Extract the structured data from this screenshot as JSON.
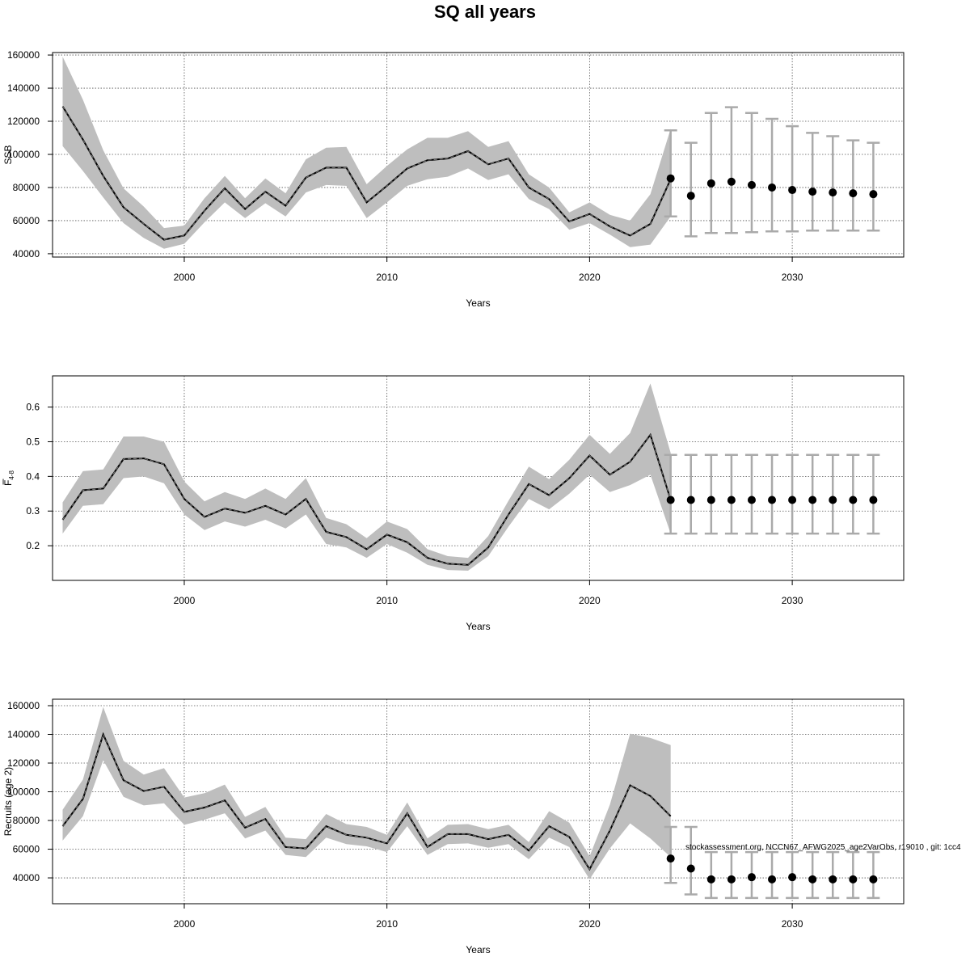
{
  "title": "SQ all years",
  "footnote": "stockassessment.org, NCCN67_AFWG2025_age2VarObs, r19010 , git: 1cc4",
  "chart_data": [
    {
      "type": "line",
      "name": "ssb",
      "ylabel": "SSB",
      "xlabel": "Years",
      "xlim": [
        1993.5,
        2035.5
      ],
      "ylim": [
        38000,
        161500
      ],
      "xticks": [
        2000,
        2010,
        2020,
        2030
      ],
      "yticks": [
        40000,
        60000,
        80000,
        100000,
        120000,
        140000,
        160000
      ],
      "grid": true,
      "x": [
        1994,
        1995,
        1996,
        1997,
        1998,
        1999,
        2000,
        2001,
        2002,
        2003,
        2004,
        2005,
        2006,
        2007,
        2008,
        2009,
        2010,
        2011,
        2012,
        2013,
        2014,
        2015,
        2016,
        2017,
        2018,
        2019,
        2020,
        2021,
        2022,
        2023,
        2024
      ],
      "estimate": [
        129000,
        109000,
        87000,
        68000,
        58000,
        48500,
        51000,
        66000,
        79500,
        67000,
        77500,
        69000,
        86000,
        92000,
        92000,
        71000,
        81000,
        91500,
        96500,
        97500,
        102000,
        94000,
        97500,
        80000,
        73000,
        59500,
        64000,
        56500,
        51000,
        58000,
        85000
      ],
      "lower": [
        105000,
        90000,
        74000,
        58500,
        49500,
        43000,
        46000,
        59000,
        71000,
        61500,
        70500,
        62500,
        77000,
        81500,
        81000,
        61500,
        71000,
        81000,
        85000,
        86500,
        91500,
        84500,
        88000,
        73000,
        67000,
        54500,
        58500,
        51500,
        44000,
        45500,
        62500
      ],
      "upper": [
        159000,
        133000,
        102500,
        79500,
        68500,
        55500,
        57000,
        73500,
        87000,
        73500,
        85500,
        76500,
        97000,
        104000,
        104500,
        82000,
        93000,
        103000,
        110000,
        110000,
        114000,
        104500,
        108000,
        88000,
        80000,
        65000,
        71000,
        63500,
        60000,
        76000,
        115500
      ],
      "forecast": {
        "x": [
          2024,
          2025,
          2026,
          2027,
          2028,
          2029,
          2030,
          2031,
          2032,
          2033,
          2034
        ],
        "median": [
          85500,
          75000,
          82500,
          83500,
          81500,
          80000,
          78500,
          77500,
          77000,
          76500,
          76000
        ],
        "lower": [
          62500,
          50500,
          52500,
          52500,
          53000,
          53500,
          53500,
          54000,
          54000,
          54000,
          54000
        ],
        "upper": [
          114500,
          107000,
          125000,
          128500,
          125000,
          121500,
          117000,
          113000,
          111000,
          108500,
          107000
        ]
      }
    },
    {
      "type": "line",
      "name": "fbar",
      "ylabel": "F",
      "ylabel_sub": "4-8",
      "xlabel": "Years",
      "xlim": [
        1993.5,
        2035.5
      ],
      "ylim": [
        0.1,
        0.69
      ],
      "xticks": [
        2000,
        2010,
        2020,
        2030
      ],
      "yticks": [
        0.2,
        0.3,
        0.4,
        0.5,
        0.6
      ],
      "grid": true,
      "x": [
        1994,
        1995,
        1996,
        1997,
        1998,
        1999,
        2000,
        2001,
        2002,
        2003,
        2004,
        2005,
        2006,
        2007,
        2008,
        2009,
        2010,
        2011,
        2012,
        2013,
        2014,
        2015,
        2016,
        2017,
        2018,
        2019,
        2020,
        2021,
        2022,
        2023,
        2024
      ],
      "estimate": [
        0.275,
        0.36,
        0.365,
        0.45,
        0.452,
        0.435,
        0.335,
        0.283,
        0.307,
        0.295,
        0.315,
        0.29,
        0.335,
        0.24,
        0.225,
        0.19,
        0.232,
        0.21,
        0.165,
        0.148,
        0.145,
        0.195,
        0.29,
        0.378,
        0.346,
        0.395,
        0.46,
        0.405,
        0.442,
        0.52,
        0.332
      ],
      "lower": [
        0.235,
        0.315,
        0.32,
        0.395,
        0.4,
        0.38,
        0.29,
        0.245,
        0.27,
        0.255,
        0.275,
        0.25,
        0.29,
        0.205,
        0.195,
        0.165,
        0.205,
        0.18,
        0.145,
        0.13,
        0.128,
        0.17,
        0.255,
        0.335,
        0.305,
        0.35,
        0.405,
        0.355,
        0.375,
        0.405,
        0.235
      ],
      "upper": [
        0.325,
        0.415,
        0.42,
        0.515,
        0.515,
        0.5,
        0.385,
        0.328,
        0.355,
        0.335,
        0.365,
        0.335,
        0.395,
        0.28,
        0.262,
        0.222,
        0.27,
        0.248,
        0.19,
        0.17,
        0.165,
        0.228,
        0.33,
        0.428,
        0.392,
        0.448,
        0.52,
        0.465,
        0.525,
        0.668,
        0.468
      ],
      "forecast": {
        "x": [
          2024,
          2025,
          2026,
          2027,
          2028,
          2029,
          2030,
          2031,
          2032,
          2033,
          2034
        ],
        "median": [
          0.332,
          0.332,
          0.332,
          0.332,
          0.332,
          0.332,
          0.332,
          0.332,
          0.332,
          0.332,
          0.332
        ],
        "lower": [
          0.235,
          0.235,
          0.235,
          0.235,
          0.235,
          0.235,
          0.235,
          0.235,
          0.235,
          0.235,
          0.235
        ],
        "upper": [
          0.462,
          0.462,
          0.462,
          0.462,
          0.462,
          0.462,
          0.462,
          0.462,
          0.462,
          0.462,
          0.462
        ]
      }
    },
    {
      "type": "line",
      "name": "recruits",
      "ylabel": "Recruits (age 2)",
      "xlabel": "Years",
      "xlim": [
        1993.5,
        2035.5
      ],
      "ylim": [
        22000,
        164500
      ],
      "xticks": [
        2000,
        2010,
        2020,
        2030
      ],
      "yticks": [
        40000,
        60000,
        80000,
        100000,
        120000,
        140000,
        160000
      ],
      "grid": true,
      "x": [
        1994,
        1995,
        1996,
        1997,
        1998,
        1999,
        2000,
        2001,
        2002,
        2003,
        2004,
        2005,
        2006,
        2007,
        2008,
        2009,
        2010,
        2011,
        2012,
        2013,
        2014,
        2015,
        2016,
        2017,
        2018,
        2019,
        2020,
        2021,
        2022,
        2023,
        2024
      ],
      "estimate": [
        76000,
        95000,
        140000,
        108000,
        100500,
        103500,
        86000,
        89000,
        94000,
        75000,
        81000,
        61500,
        60500,
        76000,
        70000,
        68000,
        64000,
        85000,
        61500,
        70500,
        70500,
        67000,
        70000,
        59000,
        76000,
        68500,
        46000,
        73000,
        104500,
        97000,
        83000
      ],
      "lower": [
        66000,
        83000,
        122000,
        96500,
        90500,
        92000,
        77000,
        80500,
        85000,
        67500,
        73000,
        56000,
        54500,
        68000,
        63500,
        62000,
        58000,
        76000,
        56000,
        63500,
        64000,
        61000,
        63500,
        53000,
        68000,
        61500,
        39000,
        60500,
        78000,
        67500,
        54500
      ],
      "upper": [
        87500,
        108500,
        159000,
        121500,
        112000,
        116500,
        96000,
        99000,
        105000,
        82500,
        89500,
        68000,
        67000,
        84500,
        77500,
        75500,
        70000,
        92500,
        67500,
        77000,
        77500,
        74000,
        77000,
        65000,
        86500,
        78500,
        55000,
        91000,
        140500,
        137500,
        132500
      ],
      "forecast": {
        "x": [
          2024,
          2025,
          2026,
          2027,
          2028,
          2029,
          2030,
          2031,
          2032,
          2033,
          2034
        ],
        "median": [
          53500,
          46500,
          39000,
          39000,
          40500,
          39000,
          40500,
          39000,
          39000,
          39000,
          39000
        ],
        "lower": [
          36500,
          28500,
          26000,
          26000,
          26000,
          26000,
          26000,
          26000,
          26000,
          26000,
          26000
        ],
        "upper": [
          75500,
          75500,
          58000,
          58000,
          58000,
          58000,
          58000,
          58000,
          58000,
          58000,
          58000
        ]
      }
    }
  ]
}
